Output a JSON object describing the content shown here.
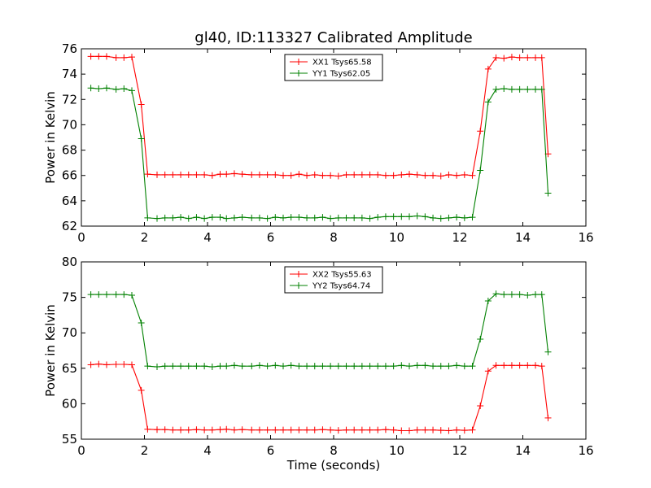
{
  "figure": {
    "title": "gl40, ID:113327 Calibrated Amplitude"
  },
  "colors": {
    "xx": "#ff0000",
    "yy": "#008000",
    "axes": "#000000",
    "background": "#ffffff"
  },
  "chart_data": [
    {
      "type": "line",
      "title": "gl40, ID:113327 Calibrated Amplitude",
      "xlabel": "",
      "ylabel": "Power in Kelvin",
      "xlim": [
        0,
        16
      ],
      "ylim": [
        62,
        76
      ],
      "xticks": [
        "0",
        "2",
        "4",
        "6",
        "8",
        "10",
        "12",
        "14",
        "16"
      ],
      "yticks": [
        "62",
        "64",
        "66",
        "68",
        "70",
        "72",
        "74",
        "76"
      ],
      "grid": false,
      "legend": "top-center",
      "marker": "+",
      "series": [
        {
          "name": "XX1 Tsys65.58",
          "color": "#ff0000",
          "x": [
            0.3,
            0.55,
            0.8,
            1.1,
            1.35,
            1.6,
            1.9,
            2.1,
            2.4,
            2.65,
            2.9,
            3.15,
            3.4,
            3.65,
            3.9,
            4.15,
            4.4,
            4.6,
            4.85,
            5.1,
            5.4,
            5.65,
            5.9,
            6.15,
            6.4,
            6.65,
            6.9,
            7.15,
            7.4,
            7.65,
            7.9,
            8.15,
            8.4,
            8.65,
            8.9,
            9.15,
            9.4,
            9.65,
            9.9,
            10.15,
            10.4,
            10.65,
            10.9,
            11.15,
            11.4,
            11.65,
            11.9,
            12.15,
            12.4,
            12.65,
            12.9,
            13.15,
            13.4,
            13.65,
            13.9,
            14.15,
            14.4,
            14.6,
            14.8
          ],
          "y": [
            75.4,
            75.4,
            75.4,
            75.3,
            75.3,
            75.35,
            71.6,
            66.1,
            66.05,
            66.05,
            66.05,
            66.05,
            66.05,
            66.05,
            66.05,
            66.0,
            66.1,
            66.1,
            66.15,
            66.1,
            66.05,
            66.05,
            66.05,
            66.05,
            66.0,
            66.0,
            66.1,
            66.0,
            66.05,
            66.0,
            66.0,
            65.95,
            66.05,
            66.05,
            66.05,
            66.05,
            66.05,
            66.0,
            66.0,
            66.05,
            66.1,
            66.05,
            66.0,
            66.0,
            65.95,
            66.05,
            66.0,
            66.05,
            66.0,
            69.5,
            74.4,
            75.3,
            75.25,
            75.35,
            75.3,
            75.3,
            75.3,
            75.3,
            67.7
          ]
        },
        {
          "name": "YY1 Tsys62.05",
          "color": "#008000",
          "x": [
            0.3,
            0.55,
            0.8,
            1.1,
            1.35,
            1.6,
            1.9,
            2.1,
            2.4,
            2.65,
            2.9,
            3.15,
            3.4,
            3.65,
            3.9,
            4.15,
            4.4,
            4.6,
            4.85,
            5.1,
            5.4,
            5.65,
            5.9,
            6.15,
            6.4,
            6.65,
            6.9,
            7.15,
            7.4,
            7.65,
            7.9,
            8.15,
            8.4,
            8.65,
            8.9,
            9.15,
            9.4,
            9.65,
            9.9,
            10.15,
            10.4,
            10.65,
            10.9,
            11.15,
            11.4,
            11.65,
            11.9,
            12.15,
            12.4,
            12.65,
            12.9,
            13.15,
            13.4,
            13.65,
            13.9,
            14.15,
            14.4,
            14.6,
            14.8
          ],
          "y": [
            72.9,
            72.85,
            72.9,
            72.8,
            72.85,
            72.7,
            68.9,
            62.65,
            62.6,
            62.65,
            62.65,
            62.7,
            62.6,
            62.7,
            62.6,
            62.7,
            62.7,
            62.6,
            62.65,
            62.7,
            62.65,
            62.65,
            62.6,
            62.7,
            62.65,
            62.7,
            62.7,
            62.65,
            62.65,
            62.7,
            62.6,
            62.65,
            62.65,
            62.65,
            62.65,
            62.6,
            62.7,
            62.75,
            62.75,
            62.75,
            62.75,
            62.8,
            62.75,
            62.65,
            62.6,
            62.65,
            62.7,
            62.65,
            62.7,
            66.4,
            71.8,
            72.8,
            72.85,
            72.8,
            72.8,
            72.8,
            72.8,
            72.8,
            64.6
          ]
        }
      ]
    },
    {
      "type": "line",
      "title": "",
      "xlabel": "Time (seconds)",
      "ylabel": "Power in Kelvin",
      "xlim": [
        0,
        16
      ],
      "ylim": [
        55,
        80
      ],
      "xticks": [
        "0",
        "2",
        "4",
        "6",
        "8",
        "10",
        "12",
        "14",
        "16"
      ],
      "yticks": [
        "55",
        "60",
        "65",
        "70",
        "75",
        "80"
      ],
      "grid": false,
      "legend": "top-center",
      "marker": "+",
      "series": [
        {
          "name": "XX2 Tsys55.63",
          "color": "#ff0000",
          "x": [
            0.3,
            0.55,
            0.8,
            1.1,
            1.35,
            1.6,
            1.9,
            2.1,
            2.4,
            2.65,
            2.9,
            3.15,
            3.4,
            3.65,
            3.9,
            4.15,
            4.4,
            4.6,
            4.85,
            5.1,
            5.4,
            5.65,
            5.9,
            6.15,
            6.4,
            6.65,
            6.9,
            7.15,
            7.4,
            7.65,
            7.9,
            8.15,
            8.4,
            8.65,
            8.9,
            9.15,
            9.4,
            9.65,
            9.9,
            10.15,
            10.4,
            10.65,
            10.9,
            11.15,
            11.4,
            11.65,
            11.9,
            12.15,
            12.4,
            12.65,
            12.9,
            13.15,
            13.4,
            13.65,
            13.9,
            14.15,
            14.4,
            14.6,
            14.8
          ],
          "y": [
            65.5,
            65.6,
            65.5,
            65.55,
            65.55,
            65.5,
            61.9,
            56.4,
            56.35,
            56.35,
            56.3,
            56.3,
            56.3,
            56.35,
            56.3,
            56.3,
            56.35,
            56.4,
            56.3,
            56.35,
            56.3,
            56.3,
            56.3,
            56.3,
            56.3,
            56.3,
            56.3,
            56.3,
            56.3,
            56.35,
            56.3,
            56.25,
            56.3,
            56.3,
            56.3,
            56.3,
            56.3,
            56.35,
            56.3,
            56.2,
            56.2,
            56.3,
            56.3,
            56.3,
            56.25,
            56.2,
            56.3,
            56.25,
            56.3,
            59.7,
            64.6,
            65.4,
            65.4,
            65.4,
            65.4,
            65.4,
            65.4,
            65.3,
            58.0
          ]
        },
        {
          "name": "YY2 Tsys64.74",
          "color": "#008000",
          "x": [
            0.3,
            0.55,
            0.8,
            1.1,
            1.35,
            1.6,
            1.9,
            2.1,
            2.4,
            2.65,
            2.9,
            3.15,
            3.4,
            3.65,
            3.9,
            4.15,
            4.4,
            4.6,
            4.85,
            5.1,
            5.4,
            5.65,
            5.9,
            6.15,
            6.4,
            6.65,
            6.9,
            7.15,
            7.4,
            7.65,
            7.9,
            8.15,
            8.4,
            8.65,
            8.9,
            9.15,
            9.4,
            9.65,
            9.9,
            10.15,
            10.4,
            10.65,
            10.9,
            11.15,
            11.4,
            11.65,
            11.9,
            12.15,
            12.4,
            12.65,
            12.9,
            13.15,
            13.4,
            13.65,
            13.9,
            14.15,
            14.4,
            14.6,
            14.8
          ],
          "y": [
            75.4,
            75.4,
            75.4,
            75.4,
            75.4,
            75.3,
            71.4,
            65.3,
            65.2,
            65.3,
            65.3,
            65.3,
            65.3,
            65.3,
            65.3,
            65.2,
            65.3,
            65.3,
            65.4,
            65.3,
            65.3,
            65.4,
            65.3,
            65.4,
            65.3,
            65.4,
            65.3,
            65.3,
            65.3,
            65.3,
            65.3,
            65.3,
            65.3,
            65.3,
            65.3,
            65.3,
            65.3,
            65.3,
            65.3,
            65.4,
            65.3,
            65.4,
            65.4,
            65.3,
            65.3,
            65.3,
            65.4,
            65.3,
            65.3,
            69.1,
            74.5,
            75.5,
            75.4,
            75.4,
            75.4,
            75.3,
            75.4,
            75.4,
            67.3
          ]
        }
      ]
    }
  ]
}
